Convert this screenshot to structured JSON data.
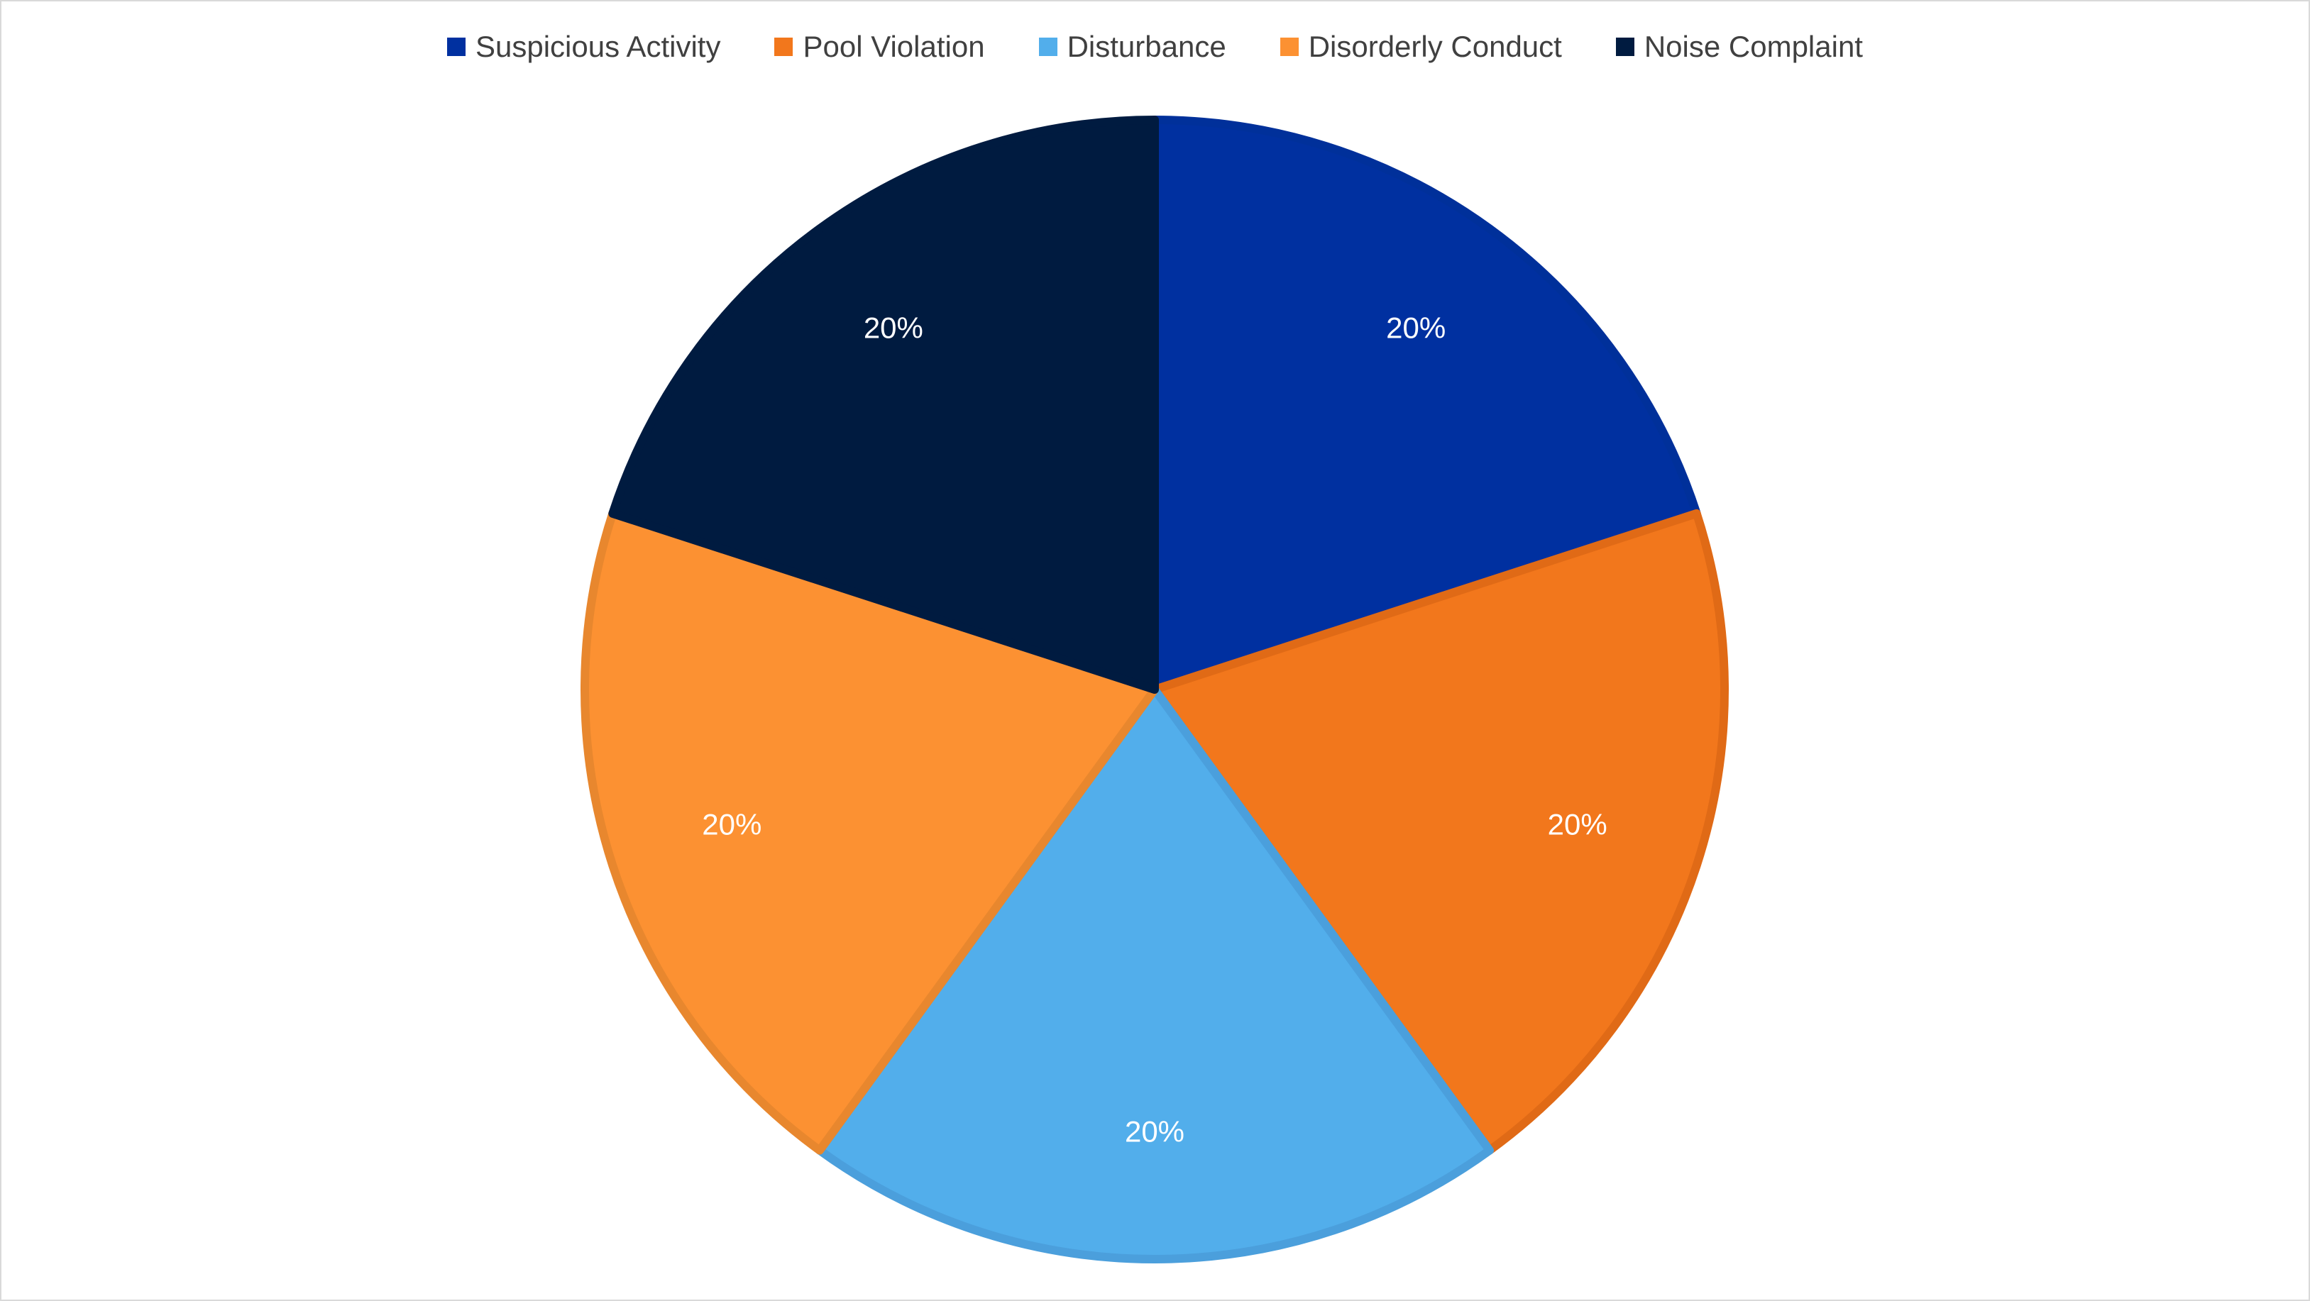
{
  "chart_data": {
    "type": "pie",
    "title": "",
    "legend_position": "top",
    "categories": [
      "Suspicious Activity",
      "Pool Violation",
      "Disturbance",
      "Disorderly Conduct",
      "Noise Complaint"
    ],
    "values": [
      20,
      20,
      20,
      20,
      20
    ],
    "data_labels": [
      "20%",
      "20%",
      "20%",
      "20%",
      "20%"
    ],
    "colors": [
      "#0030A0",
      "#F2771C",
      "#52AEEB",
      "#FC9132",
      "#001B40"
    ],
    "border_colors": [
      "#00309A",
      "#E06A16",
      "#4B9FDC",
      "#E8872E",
      "#001B40"
    ]
  }
}
